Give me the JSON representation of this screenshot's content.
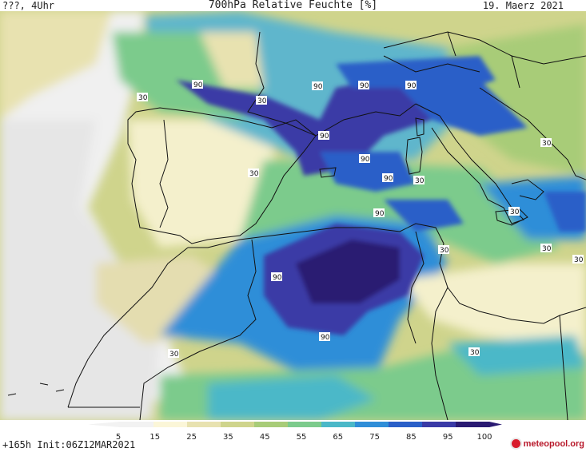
{
  "header": {
    "left": "???, 4Uhr",
    "title": "700hPa Relative Feuchte [%]",
    "date": "19. Maerz 2021"
  },
  "map": {
    "contour_labels_90": [
      "90",
      "90",
      "90",
      "90",
      "90",
      "90",
      "90",
      "90",
      "90",
      "90",
      "90"
    ],
    "contour_labels_30": [
      "30",
      "30",
      "30",
      "30",
      "30",
      "30",
      "30",
      "30",
      "30",
      "30"
    ]
  },
  "colorbar": {
    "ticks": [
      "5",
      "15",
      "25",
      "35",
      "45",
      "55",
      "65",
      "75",
      "85",
      "95",
      "100"
    ],
    "colors": [
      "#f2f2f2",
      "#fbf6d8",
      "#e8e2b0",
      "#cfd48c",
      "#a8cc78",
      "#7ccb8c",
      "#4bb8c8",
      "#2f8ed8",
      "#2a5fc8",
      "#3a3aa6",
      "#2a1a72"
    ]
  },
  "footer": {
    "run": "+165h  Init:06Z12MAR2021",
    "brand": "meteopool.org"
  }
}
